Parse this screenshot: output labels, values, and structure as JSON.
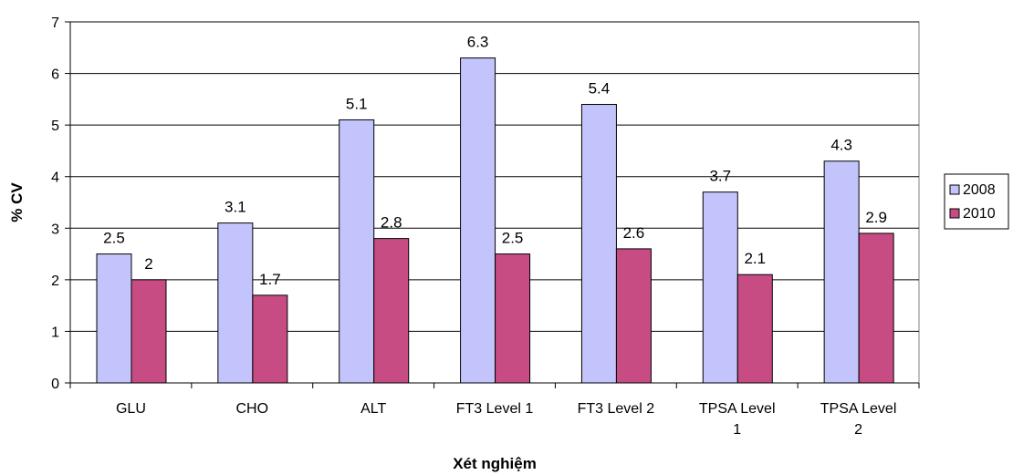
{
  "chart_data": {
    "type": "bar",
    "title": "",
    "xlabel": "Xét nghiệm",
    "ylabel": "% CV",
    "ylim": [
      0,
      7
    ],
    "yticks": [
      0,
      1,
      2,
      3,
      4,
      5,
      6,
      7
    ],
    "grid": true,
    "legend_position": "right",
    "categories": [
      "GLU",
      "CHO",
      "ALT",
      "FT3 Level 1",
      "FT3 Level 2",
      "TPSA Level 1",
      "TPSA Level 2"
    ],
    "category_label_lines": [
      [
        "GLU"
      ],
      [
        "CHO"
      ],
      [
        "ALT"
      ],
      [
        "FT3 Level 1"
      ],
      [
        "FT3 Level 2"
      ],
      [
        "TPSA Level",
        "1"
      ],
      [
        "TPSA Level",
        "2"
      ]
    ],
    "series": [
      {
        "name": "2008",
        "values": [
          2.5,
          3.1,
          5.1,
          6.3,
          5.4,
          3.7,
          4.3
        ],
        "labels": [
          "2.5",
          "3.1",
          "5.1",
          "6.3",
          "5.4",
          "3.7",
          "4.3"
        ],
        "color": "#C4C4FC"
      },
      {
        "name": "2010",
        "values": [
          2,
          1.7,
          2.8,
          2.5,
          2.6,
          2.1,
          2.9
        ],
        "labels": [
          "2",
          "1.7",
          "2.8",
          "2.5",
          "2.6",
          "2.1",
          "2.9"
        ],
        "color": "#C84C84"
      }
    ]
  }
}
